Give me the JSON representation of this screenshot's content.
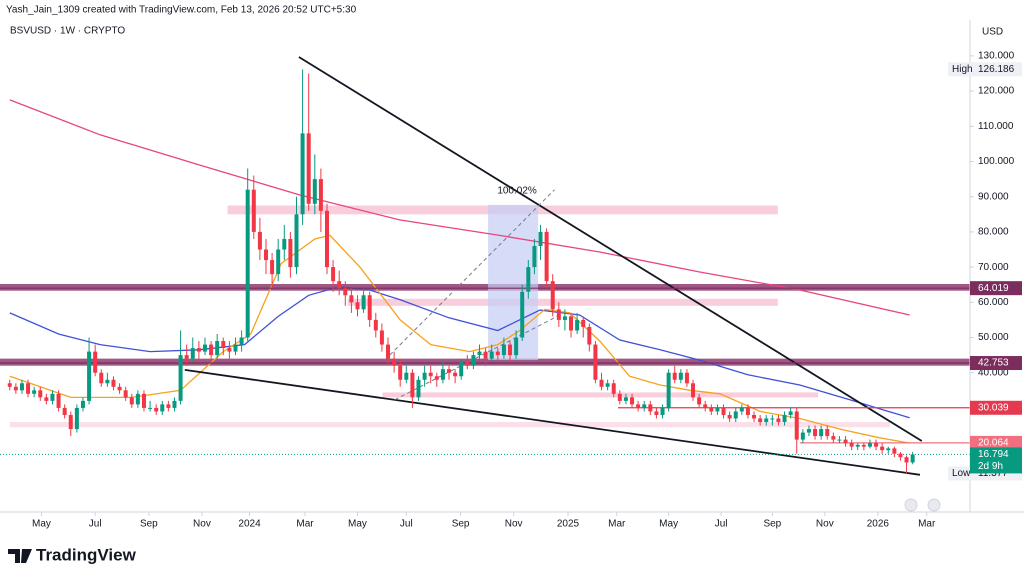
{
  "header": {
    "credit": "Yash_Jain_1309 created with TradingView.com, Feb 13, 2026 20:52 UTC+5:30",
    "symbol": "BSVUSD · 1W · CRYPTO",
    "currency": "USD",
    "brand": "TradingView"
  },
  "chart_data": {
    "type": "candlestick",
    "up_color": "#089981",
    "down_color": "#f23645",
    "xlim": [
      -1.6,
      157.4
    ],
    "ylim": [
      1,
      140.2
    ],
    "xticks": [
      {
        "value": 5.2,
        "label": "May"
      },
      {
        "value": 14,
        "label": "Jul"
      },
      {
        "value": 22.8,
        "label": "Sep"
      },
      {
        "value": 31.5,
        "label": "Nov"
      },
      {
        "value": 39.3,
        "label": "2024"
      },
      {
        "value": 48.4,
        "label": "Mar"
      },
      {
        "value": 57,
        "label": "May"
      },
      {
        "value": 65,
        "label": "Jul"
      },
      {
        "value": 73.9,
        "label": "Sep"
      },
      {
        "value": 82.6,
        "label": "Nov"
      },
      {
        "value": 91.5,
        "label": "2025"
      },
      {
        "value": 99.5,
        "label": "Mar"
      },
      {
        "value": 108,
        "label": "May"
      },
      {
        "value": 116.6,
        "label": "Jul"
      },
      {
        "value": 125,
        "label": "Sep"
      },
      {
        "value": 133.6,
        "label": "Nov"
      },
      {
        "value": 142.3,
        "label": "2026"
      },
      {
        "value": 150.3,
        "label": "Mar"
      }
    ],
    "yticks": [
      {
        "value": 130,
        "label": "130.000"
      },
      {
        "value": 120,
        "label": "120.000"
      },
      {
        "value": 110,
        "label": "110.000"
      },
      {
        "value": 100,
        "label": "100.000"
      },
      {
        "value": 90,
        "label": "90.000"
      },
      {
        "value": 80,
        "label": "80.000"
      },
      {
        "value": 70,
        "label": "70.000"
      },
      {
        "value": 60,
        "label": "60.000"
      },
      {
        "value": 50,
        "label": "50.000"
      },
      {
        "value": 40,
        "label": "40.000"
      }
    ],
    "x": [
      0,
      1,
      2,
      3,
      4,
      5,
      6,
      7,
      8,
      9,
      10,
      11,
      12,
      13,
      14,
      15,
      16,
      17,
      18,
      19,
      20,
      21,
      22,
      23,
      24,
      25,
      26,
      27,
      28,
      29,
      30,
      31,
      32,
      33,
      34,
      35,
      36,
      37,
      38,
      39,
      40,
      41,
      42,
      43,
      44,
      45,
      46,
      47,
      48,
      49,
      50,
      51,
      52,
      53,
      54,
      55,
      56,
      57,
      58,
      59,
      60,
      61,
      62,
      63,
      64,
      65,
      66,
      67,
      68,
      69,
      70,
      71,
      72,
      73,
      74,
      75,
      76,
      77,
      78,
      79,
      80,
      81,
      82,
      83,
      84,
      85,
      86,
      87,
      88,
      89,
      90,
      91,
      92,
      93,
      94,
      95,
      96,
      97,
      98,
      99,
      100,
      101,
      102,
      103,
      104,
      105,
      106,
      107,
      108,
      109,
      110,
      111,
      112,
      113,
      114,
      115,
      116,
      117,
      118,
      119,
      120,
      121,
      122,
      123,
      124,
      125,
      126,
      127,
      128,
      129,
      130,
      131,
      132,
      133,
      134,
      135,
      136,
      137,
      138,
      139,
      140,
      141,
      142,
      143,
      144,
      145,
      146,
      147,
      148
    ],
    "candles": [
      [
        37,
        38,
        35,
        36
      ],
      [
        36,
        37,
        34,
        35
      ],
      [
        35,
        38,
        34,
        37
      ],
      [
        37,
        38,
        33,
        34
      ],
      [
        34,
        36,
        33,
        35
      ],
      [
        35,
        36,
        32,
        33
      ],
      [
        33,
        34,
        31,
        32
      ],
      [
        32,
        35,
        31,
        34
      ],
      [
        34,
        35,
        29,
        30
      ],
      [
        30,
        31,
        27,
        28
      ],
      [
        28,
        29,
        22,
        24
      ],
      [
        24,
        31,
        23,
        30
      ],
      [
        30,
        33,
        29,
        32
      ],
      [
        32,
        50,
        31,
        46
      ],
      [
        46,
        48,
        39,
        40
      ],
      [
        40,
        41,
        36,
        37
      ],
      [
        37,
        40,
        36,
        38
      ],
      [
        38,
        39,
        35,
        36
      ],
      [
        36,
        37,
        34,
        35
      ],
      [
        35,
        36,
        32,
        33
      ],
      [
        33,
        34,
        30,
        31
      ],
      [
        31,
        35,
        30,
        34
      ],
      [
        34,
        35,
        29,
        30
      ],
      [
        30,
        32,
        29,
        30
      ],
      [
        30,
        31,
        28,
        29
      ],
      [
        29,
        32,
        28,
        31
      ],
      [
        31,
        32,
        29,
        30
      ],
      [
        30,
        33,
        29,
        32
      ],
      [
        32,
        52,
        31,
        45
      ],
      [
        45,
        48,
        42,
        44
      ],
      [
        44,
        50,
        43,
        47
      ],
      [
        47,
        49,
        44,
        46
      ],
      [
        46,
        50,
        45,
        48
      ],
      [
        48,
        49,
        43,
        45
      ],
      [
        45,
        51,
        44,
        49
      ],
      [
        49,
        50,
        45,
        47
      ],
      [
        47,
        49,
        44,
        46
      ],
      [
        46,
        50,
        45,
        48
      ],
      [
        48,
        52,
        46,
        50
      ],
      [
        50,
        98,
        49,
        92
      ],
      [
        92,
        96,
        78,
        80
      ],
      [
        80,
        84,
        72,
        75
      ],
      [
        75,
        78,
        68,
        72
      ],
      [
        72,
        74,
        64,
        68
      ],
      [
        68,
        78,
        66,
        75
      ],
      [
        75,
        82,
        72,
        78
      ],
      [
        78,
        80,
        67,
        70
      ],
      [
        70,
        90,
        68,
        85
      ],
      [
        85,
        126.186,
        82,
        108
      ],
      [
        108,
        125,
        86,
        88
      ],
      [
        88,
        102,
        85,
        95
      ],
      [
        95,
        98,
        80,
        86
      ],
      [
        86,
        88,
        68,
        70
      ],
      [
        70,
        72,
        63,
        66
      ],
      [
        66,
        69,
        62,
        64
      ],
      [
        64,
        66,
        59,
        62
      ],
      [
        62,
        64,
        57,
        60
      ],
      [
        60,
        62,
        56,
        58
      ],
      [
        58,
        64,
        57,
        62
      ],
      [
        62,
        63,
        53,
        55
      ],
      [
        55,
        57,
        50,
        52
      ],
      [
        52,
        54,
        46,
        48
      ],
      [
        48,
        50,
        42,
        44
      ],
      [
        44,
        46,
        40,
        42
      ],
      [
        42,
        44,
        36,
        38
      ],
      [
        38,
        42,
        37,
        40
      ],
      [
        40,
        41,
        30,
        33
      ],
      [
        33,
        39,
        32,
        38
      ],
      [
        38,
        42,
        36,
        40
      ],
      [
        40,
        42,
        37,
        39
      ],
      [
        39,
        40,
        36,
        38
      ],
      [
        38,
        43,
        37,
        41
      ],
      [
        41,
        42,
        38,
        40
      ],
      [
        40,
        41,
        37,
        39
      ],
      [
        39,
        44,
        38,
        43
      ],
      [
        43,
        45,
        41,
        42
      ],
      [
        42,
        46,
        41,
        45
      ],
      [
        45,
        48,
        43,
        46
      ],
      [
        46,
        47,
        42,
        44
      ],
      [
        44,
        48,
        43,
        46
      ],
      [
        46,
        47,
        43,
        45
      ],
      [
        45,
        50,
        44,
        48
      ],
      [
        48,
        49,
        43,
        45
      ],
      [
        45,
        52,
        44,
        50
      ],
      [
        50,
        65,
        49,
        63
      ],
      [
        63,
        72,
        61,
        70
      ],
      [
        70,
        78,
        68,
        76
      ],
      [
        76,
        82,
        72,
        80
      ],
      [
        80,
        81,
        64,
        66
      ],
      [
        66,
        68,
        56,
        58
      ],
      [
        58,
        60,
        53,
        55
      ],
      [
        55,
        58,
        52,
        56
      ],
      [
        56,
        57,
        50,
        52
      ],
      [
        52,
        57,
        51,
        55
      ],
      [
        55,
        56,
        50,
        53
      ],
      [
        53,
        54,
        46,
        48
      ],
      [
        48,
        49,
        37,
        38
      ],
      [
        38,
        40,
        35,
        36
      ],
      [
        36,
        38,
        35,
        37
      ],
      [
        37,
        38,
        33,
        34
      ],
      [
        34,
        35,
        31,
        32
      ],
      [
        32,
        34,
        31,
        33
      ],
      [
        33,
        34,
        30,
        31
      ],
      [
        31,
        32,
        29,
        30
      ],
      [
        30,
        32,
        29,
        31
      ],
      [
        31,
        32,
        28,
        29
      ],
      [
        29,
        30,
        27,
        28
      ],
      [
        28,
        31,
        27,
        30
      ],
      [
        30,
        41,
        29,
        40
      ],
      [
        40,
        42,
        37,
        38
      ],
      [
        38,
        41,
        37,
        40
      ],
      [
        40,
        41,
        36,
        37
      ],
      [
        37,
        38,
        32,
        33
      ],
      [
        33,
        34,
        30,
        31
      ],
      [
        31,
        32,
        29,
        30
      ],
      [
        30,
        31,
        28,
        29
      ],
      [
        29,
        31,
        28,
        30
      ],
      [
        30,
        31,
        27,
        28
      ],
      [
        28,
        29,
        26,
        27
      ],
      [
        27,
        30,
        26,
        29
      ],
      [
        29,
        31,
        28,
        30
      ],
      [
        30,
        31,
        27,
        28
      ],
      [
        28,
        29,
        26,
        27
      ],
      [
        27,
        28,
        25,
        26
      ],
      [
        26,
        28,
        25,
        27
      ],
      [
        27,
        28,
        25,
        27
      ],
      [
        27,
        28,
        25,
        26
      ],
      [
        26,
        29,
        25,
        28
      ],
      [
        28,
        30,
        27,
        29
      ],
      [
        29,
        30,
        17,
        21
      ],
      [
        21,
        24,
        20,
        23
      ],
      [
        23,
        25,
        22,
        24
      ],
      [
        24,
        25,
        21,
        22
      ],
      [
        22,
        25,
        21,
        24
      ],
      [
        24,
        25,
        21,
        22
      ],
      [
        22,
        23,
        20,
        21
      ],
      [
        21,
        22,
        20,
        21
      ],
      [
        21,
        22,
        19,
        20
      ],
      [
        20,
        21,
        18,
        19
      ],
      [
        19,
        20,
        18,
        19.5
      ],
      [
        19.5,
        20,
        18,
        19
      ],
      [
        19,
        21,
        18.5,
        20
      ],
      [
        20,
        21,
        18,
        19
      ],
      [
        19,
        20,
        17,
        18
      ],
      [
        18,
        19,
        17,
        18.5
      ],
      [
        18.5,
        19,
        16,
        17
      ],
      [
        17,
        17.5,
        15,
        16
      ],
      [
        16,
        16.5,
        11.377,
        14.5
      ],
      [
        14.5,
        17.5,
        14,
        16.794
      ]
    ],
    "overlays": [
      {
        "color": "#e8467c",
        "x": [
          0,
          14.8,
          31.1,
          47.5,
          63.9,
          80.3,
          96.7,
          113.1,
          129.5,
          147.5
        ],
        "values": [
          117.5,
          107.6,
          99,
          90.5,
          83.4,
          79,
          74.3,
          68.6,
          63.5,
          56.4
        ]
      },
      {
        "color": "#3f51d9",
        "x": [
          0,
          8,
          14.8,
          23,
          31,
          38.5,
          44,
          49,
          54,
          59,
          64,
          72,
          80,
          86.9,
          93.4,
          100,
          106.6,
          113,
          121,
          129.5,
          137.7,
          147.5
        ],
        "values": [
          57,
          51,
          48,
          46,
          46.5,
          48,
          56,
          62,
          64.4,
          63.5,
          60.7,
          55.6,
          52,
          57.8,
          56.4,
          49.3,
          46.5,
          43.6,
          39.4,
          36.5,
          32.3,
          27.2
        ]
      },
      {
        "color": "#f7a21b",
        "x": [
          0,
          10,
          20,
          28,
          35,
          39.5,
          44.5,
          50,
          52.5,
          57.4,
          64,
          69,
          75.4,
          80,
          83.6,
          87.7,
          91.8,
          96.7,
          101.6,
          106.6,
          111.5,
          116.4,
          123,
          129.5,
          136,
          142.6,
          147.5
        ],
        "values": [
          39,
          33,
          33,
          35,
          46,
          51,
          71,
          78,
          79,
          70,
          55,
          48,
          46,
          48,
          52,
          58,
          57,
          49,
          39,
          36.5,
          35,
          34,
          29,
          27,
          24,
          21.5,
          20
        ]
      }
    ],
    "zones": [
      {
        "from": 35.7,
        "to": 125.9,
        "low": 85,
        "high": 87.5,
        "color": "#f8c4d6"
      },
      {
        "from": -1.6,
        "to": 157.4,
        "low": 63.3,
        "high": 65.2,
        "color": "#8e3a6f"
      },
      {
        "from": 55.4,
        "to": 125.9,
        "low": 59,
        "high": 61,
        "color": "#f8c4d6"
      },
      {
        "from": -1.6,
        "to": 157.4,
        "low": 42,
        "high": 44,
        "color": "#8e3a6f"
      },
      {
        "from": 61.1,
        "to": 132.5,
        "low": 33,
        "high": 34.4,
        "color": "#f8c4d6"
      },
      {
        "from": 0,
        "to": 144.3,
        "low": 24.5,
        "high": 26,
        "color": "#fadbe6"
      }
    ],
    "trendlines": [
      {
        "x": [
          47.4,
          149.5
        ],
        "values": [
          129.7,
          20.6
        ],
        "color": "#131722",
        "dash": false
      },
      {
        "x": [
          28.7,
          149.2
        ],
        "values": [
          40.8,
          11
        ],
        "color": "#131722",
        "dash": false
      },
      {
        "x": [
          61.5,
          89.3
        ],
        "values": [
          43.6,
          92
        ],
        "color": "#787b86",
        "dash": true
      },
      {
        "x": [
          63.1,
          90.2
        ],
        "values": [
          32.3,
          56.4
        ],
        "color": "#787b86",
        "dash": true
      }
    ],
    "measure": {
      "x": [
        78.4,
        86.6
      ],
      "values": [
        43.6,
        87.7
      ],
      "label": "100.02%",
      "color": "#c5cdf5"
    },
    "levels": [
      {
        "value": 64.019,
        "color": "#7b2d5e",
        "from": -1.6
      },
      {
        "value": 42.753,
        "color": "#7b2d5e",
        "from": -1.6
      },
      {
        "value": 30.039,
        "color": "#e53950",
        "from": 99.7
      },
      {
        "value": 20.064,
        "color": "#f0707f",
        "from": 129.5
      }
    ],
    "high": {
      "label": "High",
      "value": 126.186
    },
    "low": {
      "label": "Low",
      "value": 11.377
    },
    "last": {
      "value": 16.794,
      "countdown": "2d 9h",
      "color": "#089981"
    }
  }
}
